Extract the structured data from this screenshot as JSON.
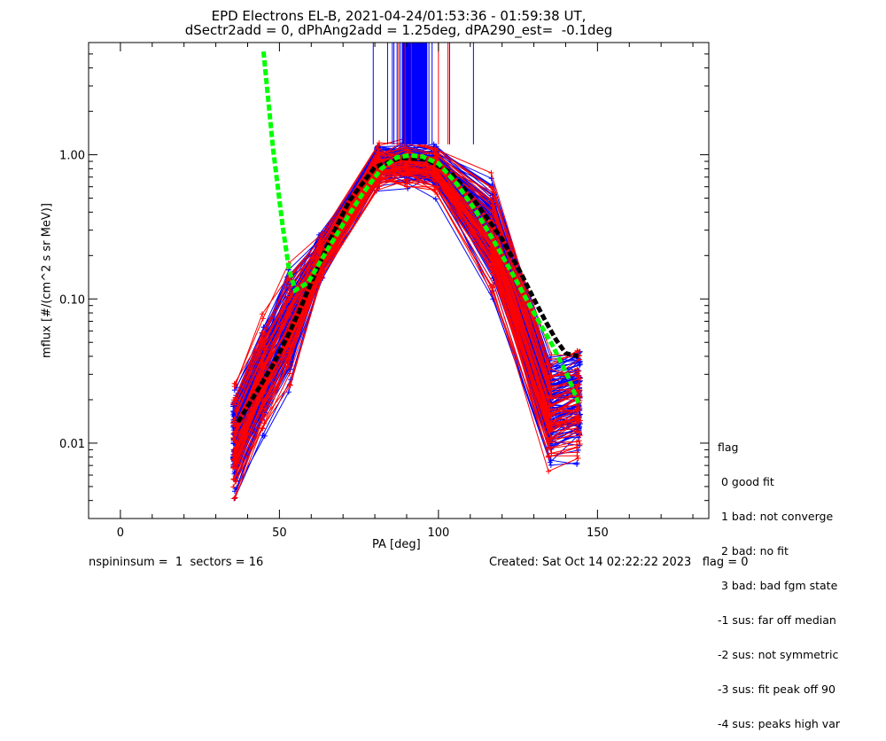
{
  "chart_data": {
    "type": "line",
    "title_line1": "EPD Electrons EL-B, 2021-04-24/01:53:36 - 01:59:38 UT,",
    "title_line2": "dSectr2add = 0, dPhAng2add = 1.25deg, dPA290_est=  -0.1deg",
    "xlabel": "PA [deg]",
    "ylabel": "mflux [#/(cm^2 s sr MeV)]",
    "xlim": [
      -10,
      185
    ],
    "ylim": [
      0.003,
      6.0
    ],
    "yscale": "log",
    "xticks": [
      0,
      50,
      100,
      150
    ],
    "xtick_labels": [
      "0",
      "50",
      "100",
      "150"
    ],
    "yticks": [
      0.01,
      0.1,
      1.0
    ],
    "ytick_labels": [
      "0.01",
      "0.10",
      "1.00"
    ],
    "grid": false,
    "series": [
      {
        "color": "#00ff00",
        "style": "dashed-thick",
        "x": [
          45,
          48,
          51,
          53,
          55,
          59,
          64,
          70,
          76,
          82,
          87,
          91,
          95,
          100,
          106,
          112,
          118,
          124,
          130,
          136,
          141,
          144
        ],
        "y": [
          5.2,
          1.1,
          0.32,
          0.16,
          0.115,
          0.13,
          0.2,
          0.33,
          0.53,
          0.8,
          0.96,
          0.99,
          0.97,
          0.87,
          0.62,
          0.4,
          0.24,
          0.14,
          0.08,
          0.047,
          0.028,
          0.019
        ]
      },
      {
        "color": "#000000",
        "style": "dashed-thick",
        "x": [
          37,
          40,
          44,
          48,
          52,
          56,
          60,
          66,
          72,
          80,
          88,
          96,
          104,
          112,
          120,
          126,
          130,
          134,
          137,
          140,
          144
        ],
        "y": [
          0.014,
          0.018,
          0.025,
          0.035,
          0.052,
          0.08,
          0.13,
          0.26,
          0.48,
          0.82,
          0.95,
          0.93,
          0.75,
          0.46,
          0.26,
          0.15,
          0.1,
          0.068,
          0.052,
          0.042,
          0.04
        ]
      }
    ],
    "bundle_blue": {
      "color": "#0000ff",
      "count": 120,
      "x": [
        36,
        45,
        53,
        63,
        81,
        90,
        99,
        117,
        135,
        144
      ],
      "base_y": [
        0.011,
        0.03,
        0.068,
        0.2,
        0.85,
        0.88,
        0.83,
        0.28,
        0.018,
        0.02
      ]
    },
    "bundle_red": {
      "color": "#ff0000",
      "count": 60,
      "x": [
        36,
        45,
        53,
        63,
        81,
        90,
        99,
        117,
        135,
        144
      ],
      "base_y": [
        0.01,
        0.028,
        0.062,
        0.19,
        0.8,
        0.84,
        0.78,
        0.25,
        0.016,
        0.018
      ]
    },
    "vlines_blue": [
      79.5,
      84,
      85.5,
      86,
      87,
      88,
      89,
      90,
      91,
      92,
      93,
      94,
      95,
      96,
      97,
      98,
      103.5,
      111
    ],
    "vlines_red": [
      87.5,
      89.5,
      91.5,
      100,
      103
    ],
    "vline_ybottom": 1.18
  },
  "legend": {
    "title": "flag",
    "items": [
      " 0 good fit",
      " 1 bad: not converge",
      " 2 bad: no fit",
      " 3 bad: bad fgm state",
      "-1 sus: far off median",
      "-2 sus: not symmetric",
      "-3 sus: fit peak off 90",
      "-4 sus: peaks high var"
    ]
  },
  "footer": {
    "left": "nspininsum =  1  sectors = 16",
    "right": "Created: Sat Oct 14 02:22:22 2023   flag = 0"
  },
  "colors": {
    "blue": "#0000ff",
    "red": "#ff0000",
    "green": "#00ff00",
    "black": "#000000"
  }
}
